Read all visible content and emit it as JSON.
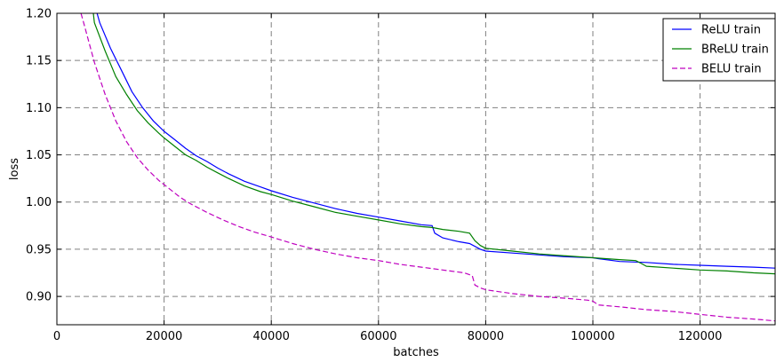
{
  "chart_data": {
    "type": "line",
    "title": "",
    "xlabel": "batches",
    "ylabel": "loss",
    "xlim": [
      0,
      134000
    ],
    "ylim": [
      0.87,
      1.2
    ],
    "xticks": [
      0,
      20000,
      40000,
      60000,
      80000,
      100000,
      120000
    ],
    "xtick_labels": [
      "0",
      "20000",
      "40000",
      "60000",
      "80000",
      "100000",
      "120000"
    ],
    "yticks": [
      0.9,
      0.95,
      1.0,
      1.05,
      1.1,
      1.15,
      1.2
    ],
    "ytick_labels": [
      "0.90",
      "0.95",
      "1.00",
      "1.05",
      "1.10",
      "1.15",
      "1.20"
    ],
    "grid": true,
    "legend_position": "top-right",
    "series": [
      {
        "name": "ReLU train",
        "color": "#0000ff",
        "dash": "solid",
        "x": [
          7500,
          8000,
          10000,
          12000,
          14000,
          16000,
          18000,
          20000,
          22000,
          24000,
          26000,
          28000,
          30000,
          32000,
          35000,
          38000,
          40000,
          44000,
          48000,
          52000,
          56000,
          60000,
          64000,
          68000,
          70000,
          70500,
          72000,
          75000,
          77000,
          79000,
          80000,
          85000,
          90000,
          95000,
          100000,
          101000,
          105000,
          110000,
          115000,
          120000,
          125000,
          130000,
          134000
        ],
        "y": [
          1.2,
          1.19,
          1.163,
          1.14,
          1.117,
          1.1,
          1.086,
          1.075,
          1.066,
          1.057,
          1.049,
          1.043,
          1.036,
          1.03,
          1.022,
          1.016,
          1.012,
          1.005,
          0.999,
          0.993,
          0.988,
          0.984,
          0.98,
          0.976,
          0.975,
          0.967,
          0.962,
          0.958,
          0.956,
          0.95,
          0.948,
          0.946,
          0.944,
          0.942,
          0.941,
          0.94,
          0.937,
          0.936,
          0.934,
          0.933,
          0.932,
          0.931,
          0.93
        ]
      },
      {
        "name": "BReLU train",
        "color": "#008000",
        "dash": "solid",
        "x": [
          6800,
          7000,
          9000,
          11000,
          13000,
          15000,
          17000,
          19000,
          20000,
          22000,
          24000,
          26000,
          28000,
          30000,
          32000,
          35000,
          38000,
          40000,
          44000,
          48000,
          52000,
          56000,
          60000,
          64000,
          68000,
          70000,
          72000,
          75000,
          77000,
          78000,
          79000,
          80000,
          85000,
          90000,
          95000,
          100000,
          105000,
          108000,
          109000,
          110000,
          115000,
          120000,
          125000,
          130000,
          134000
        ],
        "y": [
          1.2,
          1.19,
          1.16,
          1.133,
          1.114,
          1.097,
          1.084,
          1.073,
          1.068,
          1.059,
          1.05,
          1.044,
          1.037,
          1.031,
          1.025,
          1.017,
          1.011,
          1.008,
          1.001,
          0.995,
          0.989,
          0.985,
          0.981,
          0.977,
          0.974,
          0.973,
          0.971,
          0.969,
          0.967,
          0.959,
          0.954,
          0.951,
          0.948,
          0.945,
          0.943,
          0.941,
          0.939,
          0.938,
          0.935,
          0.932,
          0.93,
          0.928,
          0.927,
          0.925,
          0.924
        ]
      },
      {
        "name": "BELU train",
        "color": "#bf00bf",
        "dash": "dashed",
        "x": [
          4500,
          5000,
          7000,
          9000,
          11000,
          13000,
          15000,
          17000,
          19000,
          21000,
          23000,
          25000,
          28000,
          31000,
          34000,
          37000,
          40000,
          44000,
          48000,
          52000,
          56000,
          60000,
          64000,
          68000,
          72000,
          76000,
          77500,
          78000,
          79000,
          80000,
          85000,
          90000,
          95000,
          99000,
          100000,
          101000,
          105000,
          110000,
          115000,
          120000,
          125000,
          130000,
          134000
        ],
        "y": [
          1.2,
          1.19,
          1.148,
          1.114,
          1.086,
          1.064,
          1.047,
          1.034,
          1.023,
          1.014,
          1.005,
          0.998,
          0.989,
          0.981,
          0.974,
          0.968,
          0.963,
          0.956,
          0.95,
          0.945,
          0.941,
          0.938,
          0.934,
          0.931,
          0.928,
          0.925,
          0.922,
          0.912,
          0.909,
          0.907,
          0.903,
          0.9,
          0.898,
          0.896,
          0.895,
          0.891,
          0.889,
          0.886,
          0.884,
          0.881,
          0.878,
          0.876,
          0.874
        ]
      }
    ]
  }
}
